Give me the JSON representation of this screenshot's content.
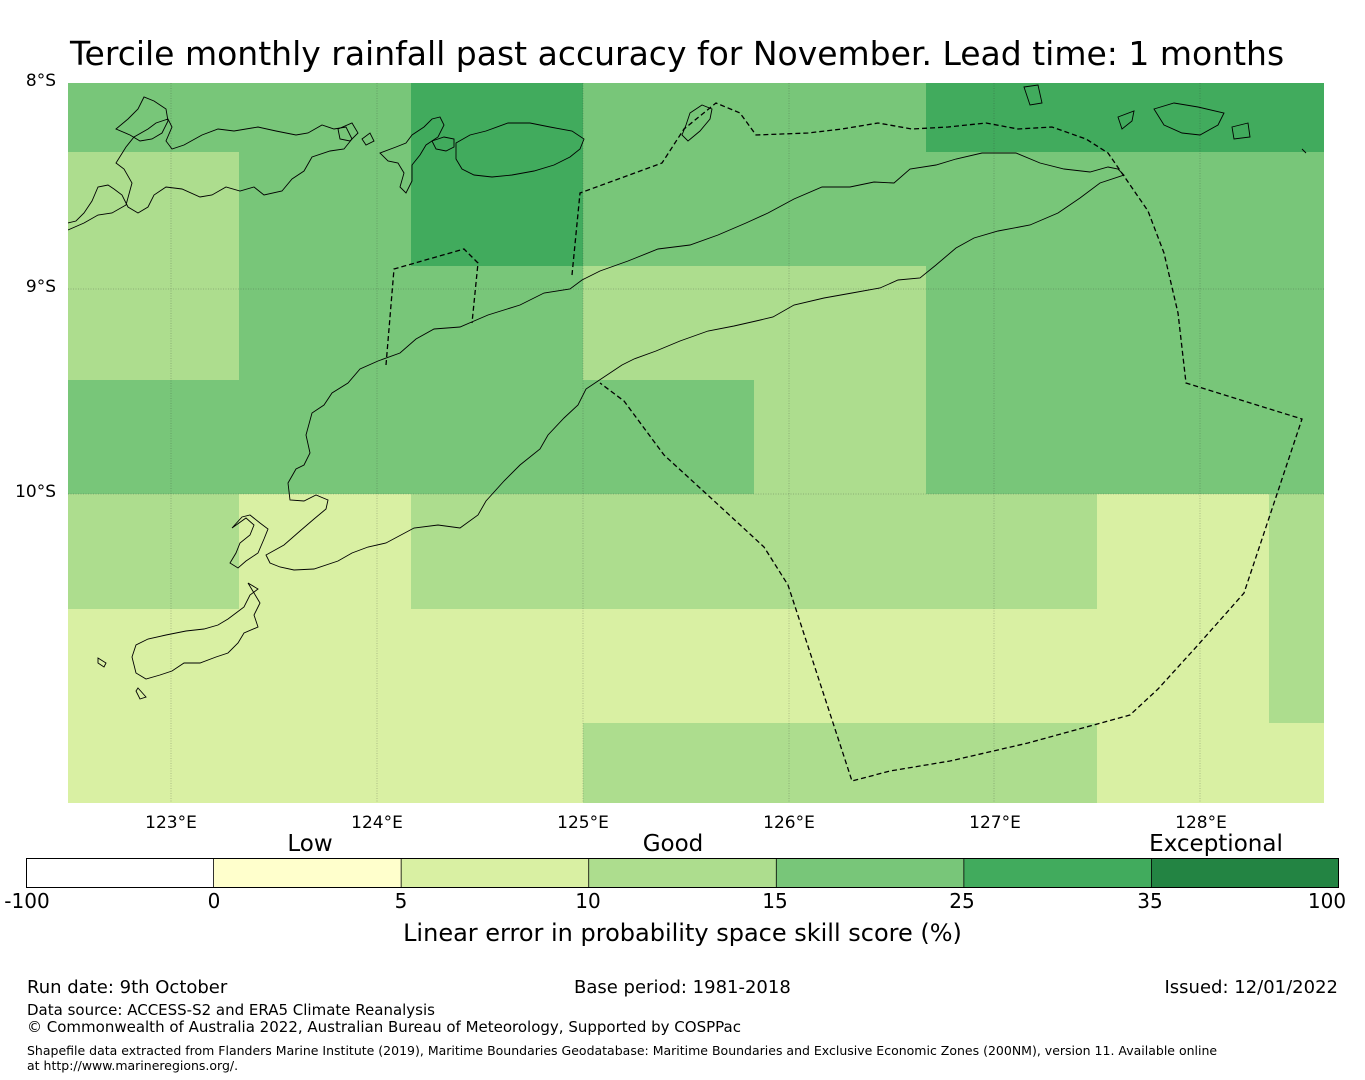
{
  "title": "Tercile monthly rainfall past accuracy for November. Lead time: 1 months",
  "map": {
    "latitude_labels": [
      "8°S",
      "9°S",
      "10°S"
    ],
    "longitude_labels": [
      "123°E",
      "124°E",
      "125°E",
      "126°E",
      "127°E",
      "128°E"
    ],
    "extent": {
      "lon_min": 122.5,
      "lon_max": 128.6,
      "lat_max": -8.0,
      "lat_min": -11.5
    },
    "grid_resolution_deg": {
      "lon": 0.833,
      "lat": 0.556
    },
    "skill_grid_class_rows": [
      [
        4,
        4,
        5,
        4,
        4,
        5,
        5,
        5
      ],
      [
        3,
        4,
        5,
        4,
        4,
        4,
        4,
        4
      ],
      [
        3,
        4,
        4,
        3,
        3,
        4,
        4,
        4
      ],
      [
        4,
        4,
        4,
        4,
        3,
        4,
        4,
        4
      ],
      [
        3,
        2,
        3,
        3,
        3,
        3,
        2,
        3
      ],
      [
        2,
        2,
        2,
        2,
        2,
        2,
        2,
        3
      ],
      [
        2,
        2,
        2,
        3,
        3,
        3,
        2,
        2
      ]
    ]
  },
  "colorbar": {
    "category_labels": [
      "Low",
      "Good",
      "Exceptional"
    ],
    "tick_labels": [
      "-100",
      "0",
      "5",
      "10",
      "15",
      "25",
      "35",
      "100"
    ],
    "colors": [
      "#ffffff",
      "#ffffcc",
      "#d9f0a3",
      "#addd8e",
      "#78c679",
      "#41ab5d",
      "#238443"
    ],
    "title": "Linear error in probability space skill score (%)"
  },
  "footer": {
    "run_date": "Run date: 9th October",
    "base_period": "Base period: 1981-2018",
    "issued": "Issued: 12/01/2022",
    "data_source": "Data source: ACCESS-S2 and ERA5 Climate Reanalysis",
    "copyright": "© Commonwealth of Australia 2022, Australian Bureau of Meteorology, Supported by COSPPac",
    "shapefile": "Shapefile data extracted from Flanders Marine Institute (2019), Maritime Boundaries Geodatabase: Maritime Boundaries and Exclusive Economic Zones (200NM), version 11. Available online at http://www.marineregions.org/."
  }
}
